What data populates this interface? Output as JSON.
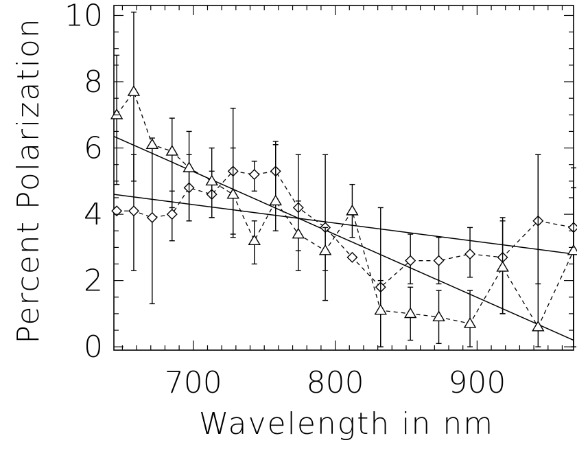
{
  "chart_data": {
    "type": "scatter",
    "title": "",
    "xlabel": "Wavelength in nm",
    "ylabel": "Percent Polarization",
    "xlim": [
      644,
      968
    ],
    "ylim": [
      -0.1,
      10.3
    ],
    "x_ticks": [
      "700",
      "800",
      "900"
    ],
    "x_tick_values": [
      700,
      800,
      900
    ],
    "y_ticks": [
      "0",
      "2",
      "4",
      "6",
      "8",
      "10"
    ],
    "y_tick_values": [
      0,
      2,
      4,
      6,
      8,
      10
    ],
    "grid": false,
    "legend": "none",
    "series": [
      {
        "marker": "diamond",
        "line": "dashed",
        "x": [
          646,
          658,
          671,
          685,
          697,
          713,
          728,
          743,
          758,
          774,
          793,
          812,
          832,
          853,
          873,
          895,
          918,
          943,
          968
        ],
        "y": [
          4.1,
          4.1,
          3.9,
          4.0,
          4.8,
          4.6,
          5.3,
          5.2,
          5.3,
          4.2,
          3.6,
          2.7,
          1.8,
          2.6,
          2.6,
          2.8,
          2.7,
          3.8,
          3.6
        ],
        "err_low": [
          null,
          2.3,
          1.3,
          3.2,
          3.8,
          3.9,
          3.3,
          4.7,
          4.3,
          2.3,
          1.4,
          null,
          0.0,
          1.9,
          1.9,
          2.1,
          1.0,
          1.9,
          0.0
        ],
        "err_high": [
          null,
          5.8,
          6.3,
          4.7,
          5.8,
          5.3,
          6.0,
          5.6,
          6.2,
          4.4,
          5.8,
          null,
          4.2,
          3.4,
          3.3,
          3.6,
          3.9,
          5.8,
          4.8
        ]
      },
      {
        "marker": "triangle",
        "line": "dashed",
        "x": [
          646,
          658,
          671,
          685,
          697,
          713,
          728,
          743,
          758,
          774,
          793,
          812,
          832,
          853,
          873,
          895,
          918,
          943,
          968
        ],
        "y": [
          7.0,
          7.7,
          6.1,
          5.9,
          5.4,
          5.0,
          4.6,
          3.2,
          4.4,
          3.4,
          2.9,
          4.1,
          1.1,
          1.0,
          0.9,
          0.7,
          2.4,
          0.6,
          2.9
        ],
        "err_low": [
          4.9,
          5.0,
          null,
          4.2,
          3.8,
          3.9,
          3.4,
          2.5,
          3.5,
          2.9,
          2.3,
          3.3,
          0.0,
          0.2,
          0.1,
          0.0,
          1.0,
          0.0,
          0.0
        ],
        "err_high": [
          8.8,
          10.1,
          7.2,
          6.9,
          6.5,
          6.0,
          7.2,
          3.8,
          6.1,
          5.8,
          3.6,
          4.9,
          2.0,
          1.8,
          1.7,
          1.7,
          3.8,
          5.8,
          5.4
        ]
      }
    ],
    "fit_lines": [
      {
        "style": "solid",
        "x": [
          644,
          968
        ],
        "y": [
          6.35,
          0.2
        ]
      },
      {
        "style": "solid",
        "x": [
          644,
          968
        ],
        "y": [
          4.6,
          2.8
        ]
      }
    ]
  }
}
